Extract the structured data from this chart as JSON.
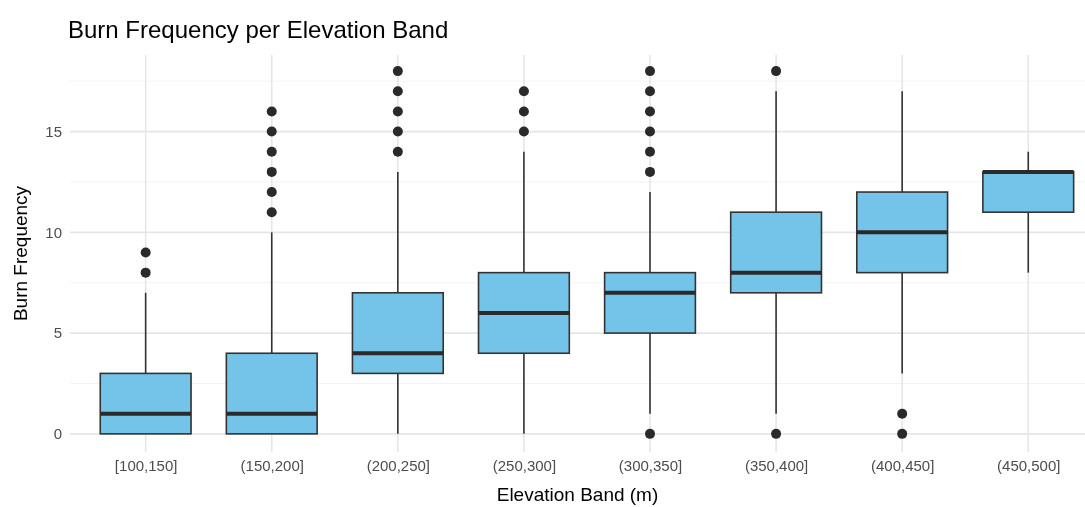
{
  "chart_data": {
    "type": "box",
    "title": "Burn Frequency per Elevation Band",
    "xlabel": "Elevation Band (m)",
    "ylabel": "Burn Frequency",
    "categories": [
      "[100,150]",
      "(150,200]",
      "(200,250]",
      "(250,300]",
      "(300,350]",
      "(350,400]",
      "(400,450]",
      "(450,500]"
    ],
    "color": "#74c3e8",
    "ylim": [
      -0.9,
      18.8
    ],
    "yticks": [
      0,
      5,
      10,
      15
    ],
    "grid": true,
    "boxes": [
      {
        "low": 0,
        "q1": 0,
        "median": 1,
        "q3": 3,
        "high": 7,
        "outliers": [
          8,
          9
        ]
      },
      {
        "low": 0,
        "q1": 0,
        "median": 1,
        "q3": 4,
        "high": 10,
        "outliers": [
          11,
          12,
          13,
          14,
          15,
          16
        ]
      },
      {
        "low": 0,
        "q1": 3,
        "median": 4,
        "q3": 7,
        "high": 13,
        "outliers": [
          14,
          15,
          16,
          17,
          18
        ]
      },
      {
        "low": 0,
        "q1": 4,
        "median": 6,
        "q3": 8,
        "high": 14,
        "outliers": [
          15,
          16,
          17
        ]
      },
      {
        "low": 1,
        "q1": 5,
        "median": 7,
        "q3": 8,
        "high": 12,
        "outliers": [
          0,
          13,
          14,
          15,
          16,
          17,
          18
        ]
      },
      {
        "low": 1,
        "q1": 7,
        "median": 8,
        "q3": 11,
        "high": 17,
        "outliers": [
          0,
          18
        ]
      },
      {
        "low": 3,
        "q1": 8,
        "median": 10,
        "q3": 12,
        "high": 17,
        "outliers": [
          0,
          1
        ]
      },
      {
        "low": 8,
        "q1": 11,
        "median": 13,
        "q3": 13,
        "high": 14
      }
    ]
  }
}
